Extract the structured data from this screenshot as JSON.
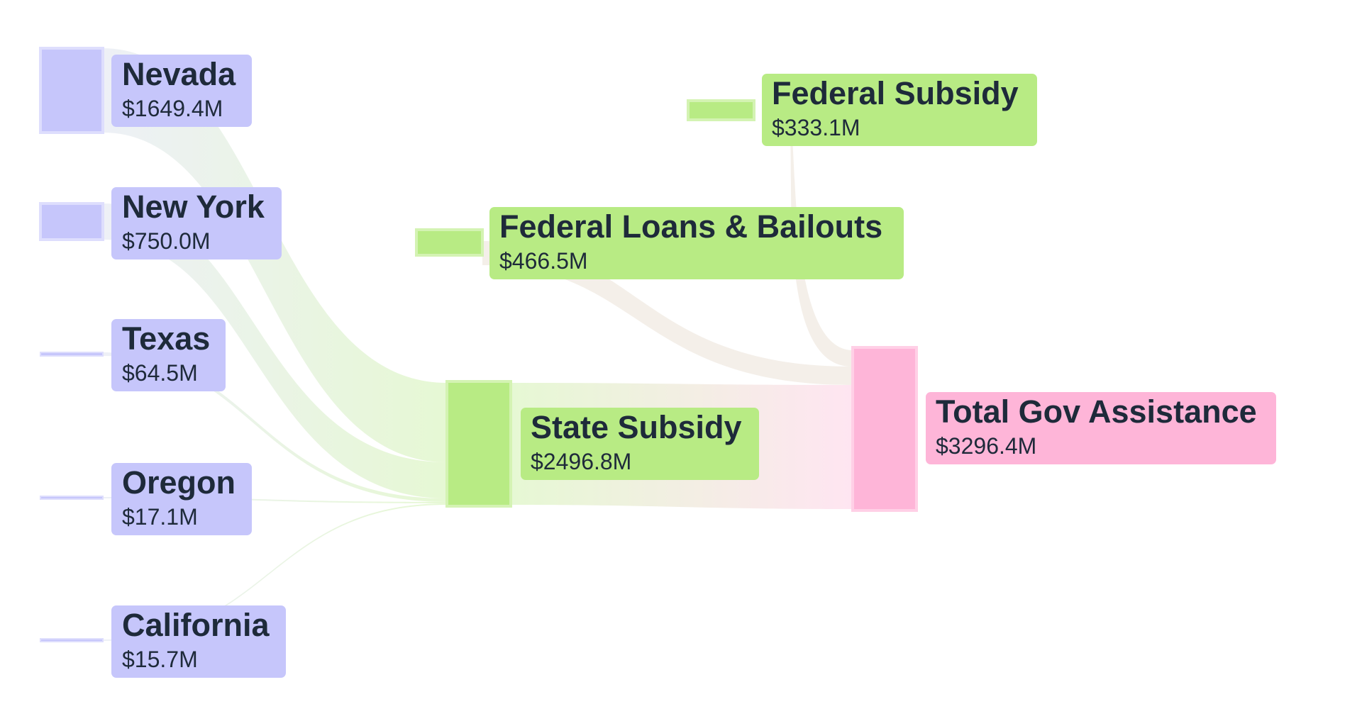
{
  "diagram": {
    "type": "sankey",
    "colors": {
      "state": "#c6c6fb",
      "subsidy": "#b8eb84",
      "total": "#feb5d8"
    },
    "nodes": [
      {
        "id": "nevada",
        "name": "Nevada",
        "value_label": "$1649.4M",
        "value": 1649.4,
        "group": "state"
      },
      {
        "id": "newyork",
        "name": "New York",
        "value_label": "$750.0M",
        "value": 750.0,
        "group": "state"
      },
      {
        "id": "texas",
        "name": "Texas",
        "value_label": "$64.5M",
        "value": 64.5,
        "group": "state"
      },
      {
        "id": "oregon",
        "name": "Oregon",
        "value_label": "$17.1M",
        "value": 17.1,
        "group": "state"
      },
      {
        "id": "california",
        "name": "California",
        "value_label": "$15.7M",
        "value": 15.7,
        "group": "state"
      },
      {
        "id": "fedloans",
        "name": "Federal Loans & Bailouts",
        "value_label": "$466.5M",
        "value": 466.5,
        "group": "subsidy"
      },
      {
        "id": "fedsubsidy",
        "name": "Federal Subsidy",
        "value_label": "$333.1M",
        "value": 333.1,
        "group": "subsidy"
      },
      {
        "id": "statesubsidy",
        "name": "State Subsidy",
        "value_label": "$2496.8M",
        "value": 2496.8,
        "group": "subsidy"
      },
      {
        "id": "total",
        "name": "Total Gov Assistance",
        "value_label": "$3296.4M",
        "value": 3296.4,
        "group": "total"
      }
    ],
    "links": [
      {
        "source": "nevada",
        "target": "statesubsidy",
        "value": 1649.4
      },
      {
        "source": "newyork",
        "target": "statesubsidy",
        "value": 750.0
      },
      {
        "source": "texas",
        "target": "statesubsidy",
        "value": 64.5
      },
      {
        "source": "oregon",
        "target": "statesubsidy",
        "value": 17.1
      },
      {
        "source": "california",
        "target": "statesubsidy",
        "value": 15.7
      },
      {
        "source": "statesubsidy",
        "target": "total",
        "value": 2496.8
      },
      {
        "source": "fedloans",
        "target": "total",
        "value": 466.5
      },
      {
        "source": "fedsubsidy",
        "target": "total",
        "value": 333.1
      }
    ]
  }
}
